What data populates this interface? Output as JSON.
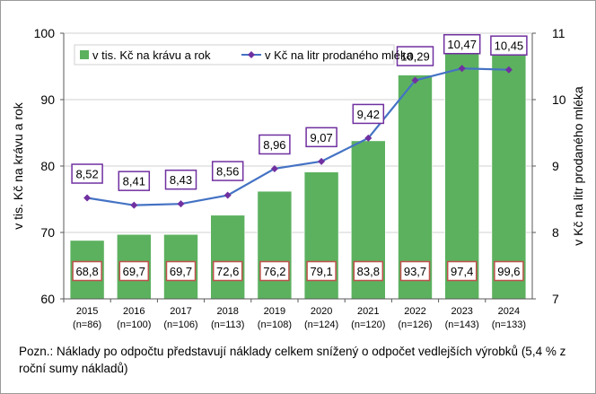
{
  "chart_data": {
    "type": "bar",
    "categories": [
      "2015",
      "2016",
      "2017",
      "2018",
      "2019",
      "2020",
      "2021",
      "2022",
      "2023",
      "2024"
    ],
    "sample_sizes": [
      "(n=86)",
      "(n=100)",
      "(n=106)",
      "(n=113)",
      "(n=108)",
      "(n=124)",
      "(n=120)",
      "(n=126)",
      "(n=143)",
      "(n=133)"
    ],
    "bar_series": {
      "name": "v tis. Kč na krávu a rok",
      "values": [
        68.8,
        69.7,
        69.7,
        72.6,
        76.2,
        79.1,
        83.8,
        93.7,
        97.4,
        99.6
      ],
      "labels": [
        "68,8",
        "69,7",
        "69,7",
        "72,6",
        "76,2",
        "79,1",
        "83,8",
        "93,7",
        "97,4",
        "99,6"
      ],
      "color": "#5cb15f",
      "axis": "left"
    },
    "line_series": {
      "name": "v Kč na litr prodaného mléka",
      "values": [
        8.52,
        8.41,
        8.43,
        8.56,
        8.96,
        9.07,
        9.42,
        10.29,
        10.47,
        10.45
      ],
      "labels": [
        "8,52",
        "8,41",
        "8,43",
        "8,56",
        "8,96",
        "9,07",
        "9,42",
        "10,29",
        "10,47",
        "10,45"
      ],
      "line_color": "#4472c4",
      "marker_color": "#7030a0",
      "axis": "right"
    },
    "ylabel": "v tis. Kč na krávu a rok",
    "ylabel_right": "v Kč na litr prodaného mléka",
    "ylim": [
      60,
      100
    ],
    "ylim_right": [
      7,
      11
    ],
    "yticks": [
      "60",
      "70",
      "80",
      "90",
      "100"
    ],
    "yticks_right": [
      "7",
      "8",
      "9",
      "10",
      "11"
    ],
    "grid": true,
    "legend_position": "top",
    "label_border_color": "#c0504d",
    "line_label_border_color": "#7030a0"
  },
  "note": "Pozn.: Náklady po odpočtu představují náklady celkem snížený o odpočet vedlejších výrobků (5,4 % z roční sumy nákladů)"
}
